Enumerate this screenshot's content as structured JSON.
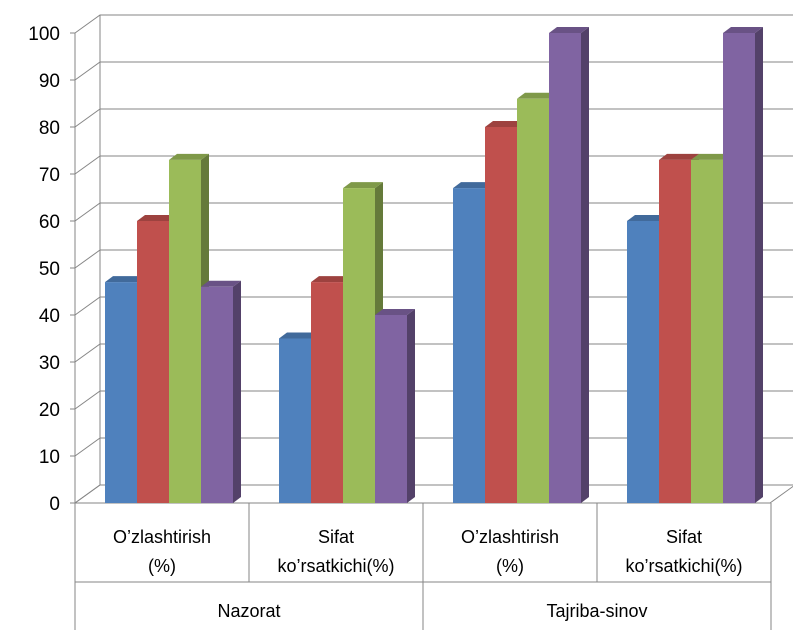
{
  "chart_data": {
    "type": "bar",
    "style": "3d-clustered-column",
    "groups": [
      {
        "label": "Nazorat",
        "categories": [
          "O’zlashtirish (%)",
          "Sifat ko’rsatkichi(%)"
        ]
      },
      {
        "label": "Tajriba-sinov",
        "categories": [
          "O’zlashtirish (%)",
          "Sifat ko’rsatkichi(%)"
        ]
      }
    ],
    "category_lines": [
      [
        "O’zlashtirish",
        "(%)"
      ],
      [
        "Sifat",
        "ko’rsatkichi(%)"
      ],
      [
        "O’zlashtirish",
        "(%)"
      ],
      [
        "Sifat",
        "ko’rsatkichi(%)"
      ]
    ],
    "series": [
      {
        "color": "#4F81BD",
        "values": [
          47,
          35,
          67,
          60
        ]
      },
      {
        "color": "#C0504D",
        "values": [
          60,
          47,
          80,
          73
        ]
      },
      {
        "color": "#9BBB59",
        "values": [
          73,
          67,
          86,
          73
        ]
      },
      {
        "color": "#8064A2",
        "values": [
          46,
          40,
          100,
          100
        ]
      }
    ],
    "ylim": [
      0,
      100
    ],
    "yticks": [
      0,
      10,
      20,
      30,
      40,
      50,
      60,
      70,
      80,
      90,
      100
    ],
    "grid": true,
    "legend": "none"
  }
}
